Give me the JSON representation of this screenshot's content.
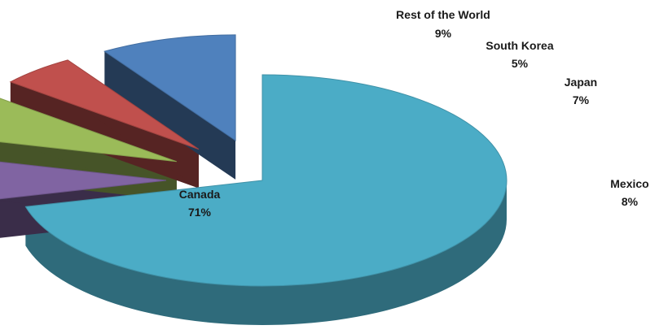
{
  "chart_data": {
    "type": "pie",
    "title": "",
    "style": "3d-exploded",
    "categories": [
      "Canada",
      "Mexico",
      "Japan",
      "South Korea",
      "Rest of the World"
    ],
    "values": [
      71,
      8,
      7,
      5,
      9
    ],
    "value_labels": [
      "71%",
      "8%",
      "7%",
      "5%",
      "9%"
    ],
    "colors": [
      "#4BACC6",
      "#8064A2",
      "#9BBB59",
      "#C0504D",
      "#4F81BD"
    ],
    "legend": "none",
    "data_labels": "outside-and-inside"
  }
}
